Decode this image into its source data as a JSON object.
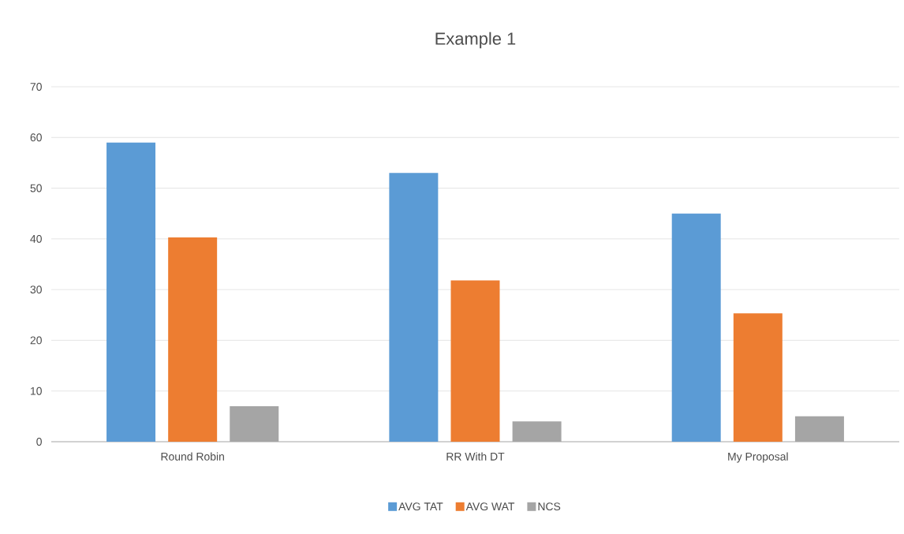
{
  "chart_data": {
    "type": "bar",
    "title": "Example 1",
    "categories": [
      "Round Robin",
      "RR With DT",
      "My Proposal"
    ],
    "series": [
      {
        "name": "AVG TAT",
        "color": "#5b9bd5",
        "values": [
          59,
          53,
          45
        ]
      },
      {
        "name": "AVG WAT",
        "color": "#ed7d31",
        "values": [
          40.3,
          31.8,
          25.3
        ]
      },
      {
        "name": "NCS",
        "color": "#a5a5a5",
        "values": [
          7,
          4,
          5
        ]
      }
    ],
    "ylim": [
      0,
      70
    ],
    "yticks": [
      0,
      10,
      20,
      30,
      40,
      50,
      60,
      70
    ],
    "grid": "y",
    "legend": "bottom"
  }
}
